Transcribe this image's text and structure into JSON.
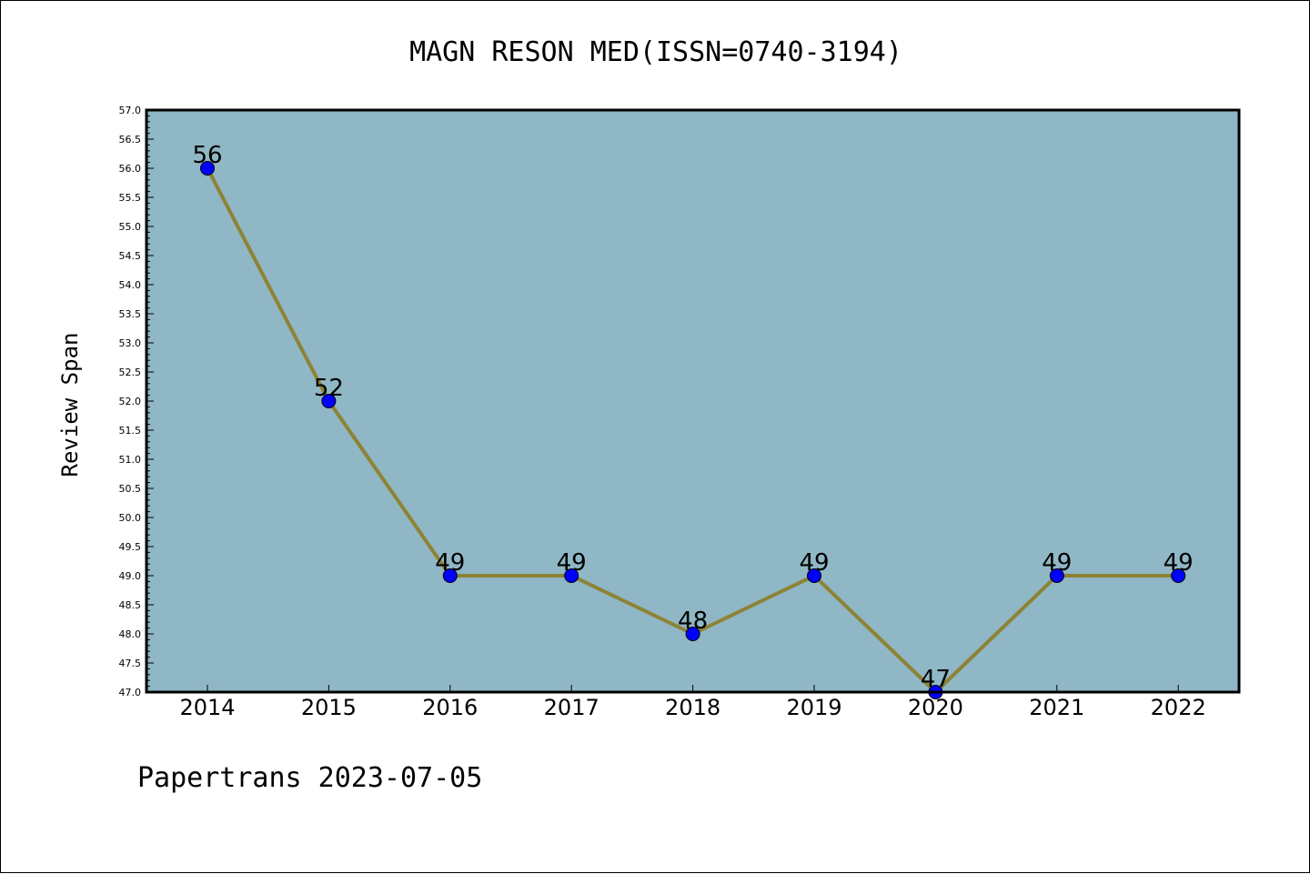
{
  "chart_data": {
    "type": "line",
    "title": "MAGN RESON MED(ISSN=0740-3194)",
    "xlabel": "",
    "ylabel": "Review Span",
    "categories": [
      "2014",
      "2015",
      "2016",
      "2017",
      "2018",
      "2019",
      "2020",
      "2021",
      "2022"
    ],
    "series": [
      {
        "values": [
          56,
          52,
          49,
          49,
          48,
          49,
          47,
          49,
          49
        ]
      }
    ],
    "ylim": [
      47.0,
      57.0
    ],
    "y_ticks": [
      "47.0",
      "47.5",
      "48.0",
      "48.5",
      "49.0",
      "49.5",
      "50.0",
      "50.5",
      "51.0",
      "51.5",
      "52.0",
      "52.5",
      "53.0",
      "53.5",
      "54.0",
      "54.5",
      "55.0",
      "55.5",
      "56.0",
      "56.5",
      "57.0"
    ],
    "grid": false,
    "colors": {
      "plot_background": "#8fb7c5",
      "line": "#8d8335",
      "marker": "#0000ff"
    }
  },
  "footer": "Papertrans 2023-07-05"
}
